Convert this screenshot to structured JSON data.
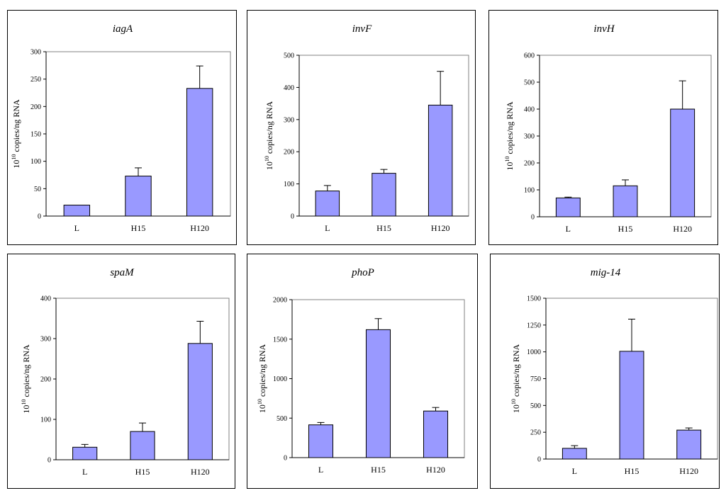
{
  "styles": {
    "bar_color": "#9999ff",
    "axis_color": "#000000",
    "plot_border_color": "#808080"
  },
  "ylabel_base": "10",
  "ylabel_exp": "10",
  "ylabel_rest": " copies/ng RNA",
  "chart_data": [
    {
      "type": "bar",
      "title": "iagA",
      "categories": [
        "L",
        "H15",
        "H120"
      ],
      "values": [
        20,
        73,
        233
      ],
      "errors": [
        0,
        15,
        41
      ],
      "ylim": [
        0,
        300
      ],
      "yticks": [
        "0",
        "50",
        "100",
        "150",
        "200",
        "250",
        "300"
      ],
      "tick_values": [
        0,
        50,
        100,
        150,
        200,
        250,
        300
      ]
    },
    {
      "type": "bar",
      "title": "invF",
      "categories": [
        "L",
        "H15",
        "H120"
      ],
      "values": [
        78,
        133,
        345
      ],
      "errors": [
        17,
        12,
        105
      ],
      "ylim": [
        0,
        500
      ],
      "yticks": [
        "0",
        "100",
        "200",
        "300",
        "400",
        "500"
      ],
      "tick_values": [
        0,
        100,
        200,
        300,
        400,
        500
      ]
    },
    {
      "type": "bar",
      "title": "invH",
      "categories": [
        "L",
        "H15",
        "H120"
      ],
      "values": [
        70,
        115,
        400
      ],
      "errors": [
        3,
        22,
        105
      ],
      "ylim": [
        0,
        600
      ],
      "yticks": [
        "0",
        "100",
        "200",
        "300",
        "400",
        "500",
        "600"
      ],
      "tick_values": [
        0,
        100,
        200,
        300,
        400,
        500,
        600
      ]
    },
    {
      "type": "bar",
      "title": "spaM",
      "categories": [
        "L",
        "H15",
        "H120"
      ],
      "values": [
        31,
        70,
        288
      ],
      "errors": [
        7,
        21,
        55
      ],
      "ylim": [
        0,
        400
      ],
      "yticks": [
        "0",
        "100",
        "200",
        "300",
        "400"
      ],
      "tick_values": [
        0,
        100,
        200,
        300,
        400
      ]
    },
    {
      "type": "bar",
      "title": "phoP",
      "categories": [
        "L",
        "H15",
        "H120"
      ],
      "values": [
        415,
        1620,
        590
      ],
      "errors": [
        30,
        140,
        45
      ],
      "ylim": [
        0,
        2000
      ],
      "yticks": [
        "0",
        "500",
        "1000",
        "1500",
        "2000"
      ],
      "tick_values": [
        0,
        500,
        1000,
        1500,
        2000
      ]
    },
    {
      "type": "bar",
      "title": "mig-14",
      "categories": [
        "L",
        "H15",
        "H120"
      ],
      "values": [
        100,
        1005,
        270
      ],
      "errors": [
        25,
        300,
        20
      ],
      "ylim": [
        0,
        1500
      ],
      "yticks": [
        "0",
        "250",
        "500",
        "750",
        "1000",
        "1250",
        "1500"
      ],
      "tick_values": [
        0,
        250,
        500,
        750,
        1000,
        1250,
        1500
      ]
    }
  ]
}
